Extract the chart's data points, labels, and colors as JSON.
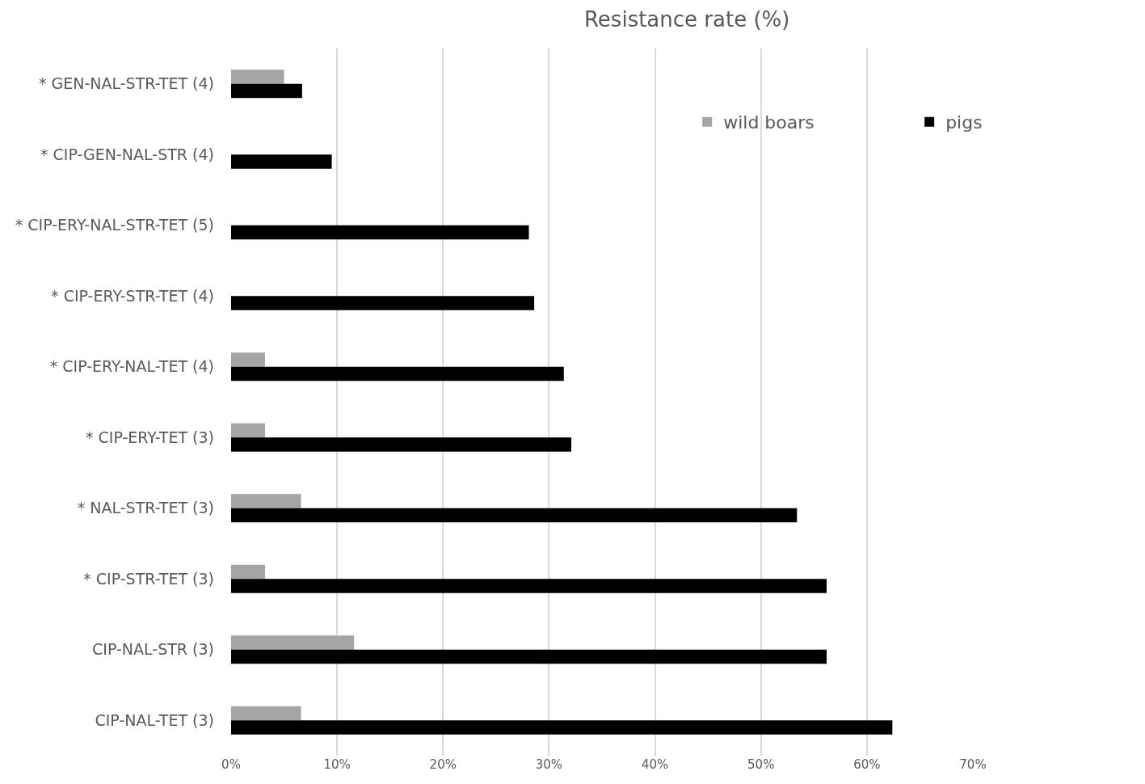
{
  "chart_data": {
    "type": "bar",
    "orientation": "horizontal",
    "title": "Resistance rate (%)",
    "categories": [
      "* GEN-NAL-STR-TET (4)",
      "* CIP-GEN-NAL-STR (4)",
      "* CIP-ERY-NAL-STR-TET (5)",
      "* CIP-ERY-STR-TET (4)",
      "* CIP-ERY-NAL-TET (4)",
      "* CIP-ERY-TET (3)",
      "* NAL-STR-TET (3)",
      "* CIP-STR-TET (3)",
      "CIP-NAL-STR (3)",
      "CIP-NAL-TET (3)"
    ],
    "series": [
      {
        "name": "wild boars",
        "color": "#a5a5a5",
        "values": [
          5.0,
          0,
          0,
          0,
          3.2,
          3.2,
          6.6,
          3.2,
          11.6,
          6.6
        ]
      },
      {
        "name": "pigs",
        "color": "#000000",
        "values": [
          6.7,
          9.5,
          28.1,
          28.6,
          31.4,
          32.1,
          53.4,
          56.2,
          56.2,
          62.4
        ]
      }
    ],
    "xlim": [
      0,
      70
    ],
    "xticks": [
      {
        "value": 0,
        "label": "0%"
      },
      {
        "value": 10,
        "label": "10%"
      },
      {
        "value": 20,
        "label": "20%"
      },
      {
        "value": 30,
        "label": "30%"
      },
      {
        "value": 40,
        "label": "40%"
      },
      {
        "value": 50,
        "label": "50%"
      },
      {
        "value": 60,
        "label": "60%"
      },
      {
        "value": 70,
        "label": "70%"
      }
    ],
    "grid": "x",
    "legend": "top right"
  }
}
